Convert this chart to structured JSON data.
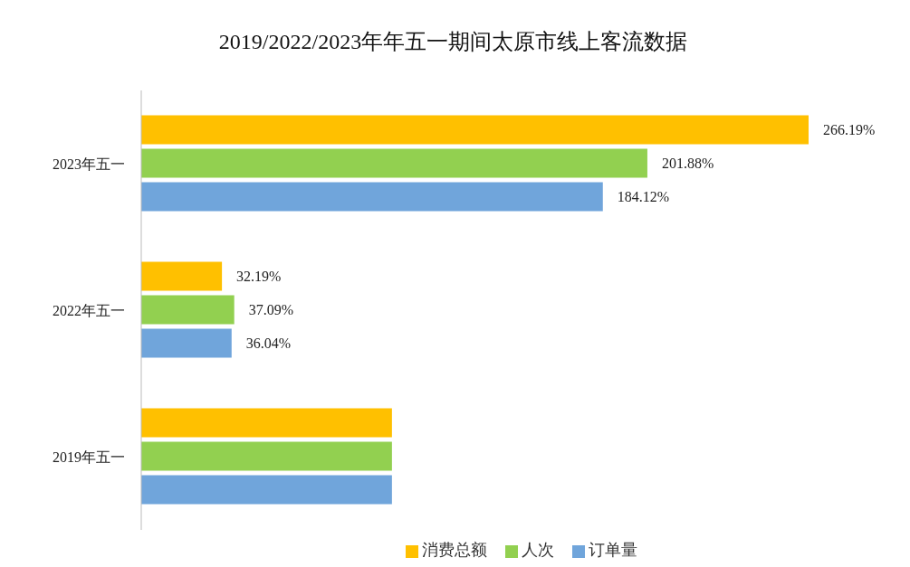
{
  "chart_data": {
    "type": "bar",
    "orientation": "horizontal",
    "title": "2019/2022/2023年年五一期间太原市线上客流数据",
    "categories": [
      "2023年五一",
      "2022年五一",
      "2019年五一"
    ],
    "series": [
      {
        "name": "消费总额",
        "color": "#ffc000",
        "values": [
          266.19,
          32.19,
          100
        ],
        "value_labels": [
          "266.19%",
          "32.19%",
          null
        ]
      },
      {
        "name": "人次",
        "color": "#92d050",
        "values": [
          201.88,
          37.09,
          100
        ],
        "value_labels": [
          "201.88%",
          "37.09%",
          null
        ]
      },
      {
        "name": "订单量",
        "color": "#70a5db",
        "values": [
          184.12,
          36.04,
          100
        ],
        "value_labels": [
          "184.12%",
          "36.04%",
          null
        ]
      }
    ],
    "legend": "bottom",
    "grid": false
  }
}
